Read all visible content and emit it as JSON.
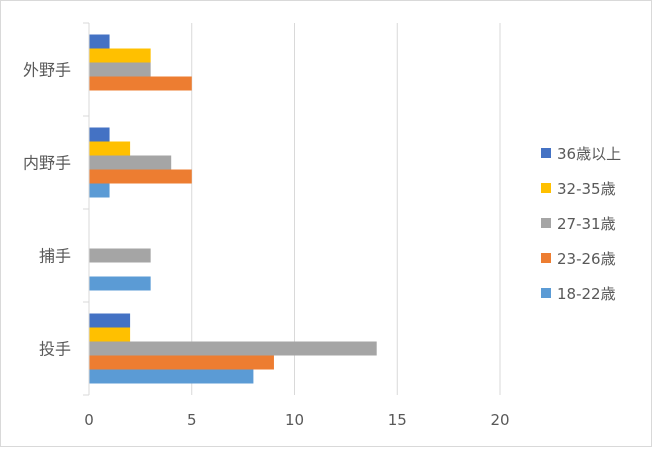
{
  "chart_data": {
    "type": "bar",
    "orientation": "horizontal",
    "categories": [
      "投手",
      "捕手",
      "内野手",
      "外野手"
    ],
    "series": [
      {
        "name": "18-22歳",
        "color": "#5b9bd5",
        "values": [
          8,
          3,
          1,
          0
        ]
      },
      {
        "name": "23-26歳",
        "color": "#ed7d31",
        "values": [
          9,
          0,
          5,
          5
        ]
      },
      {
        "name": "27-31歳",
        "color": "#a5a5a5",
        "values": [
          14,
          3,
          4,
          3
        ]
      },
      {
        "name": "32-35歳",
        "color": "#ffc000",
        "values": [
          2,
          0,
          2,
          3
        ]
      },
      {
        "name": "36歳以上",
        "color": "#4472c4",
        "values": [
          2,
          0,
          1,
          1
        ]
      }
    ],
    "xlim": [
      0,
      20
    ],
    "xticks": [
      0,
      5,
      10,
      15,
      20
    ],
    "grid": true,
    "legend_position": "right",
    "title": "",
    "xlabel": "",
    "ylabel": ""
  }
}
